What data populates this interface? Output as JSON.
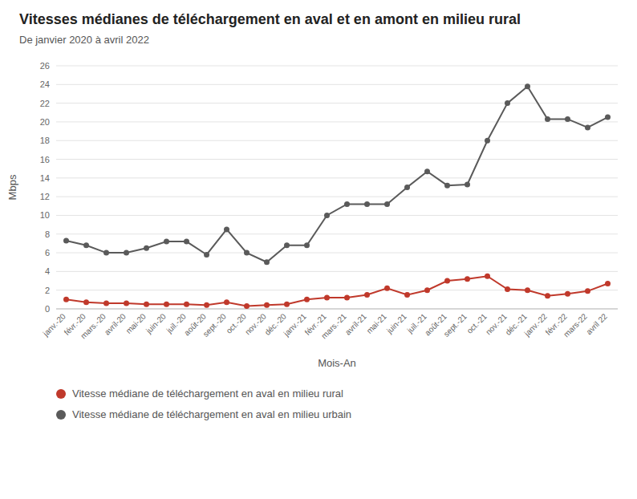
{
  "chart_data": {
    "type": "line",
    "title": "Vitesses médianes de téléchargement en aval et en amont en milieu rural",
    "subtitle": "De janvier 2020 à avril 2022",
    "x_label": "Mois-An",
    "y_label": "Mbps",
    "categories": [
      "janv.-20",
      "févr.-20",
      "mars.-20",
      "avril-20",
      "mai-20",
      "juin-20",
      "juil.-20",
      "août-20",
      "sept.-20",
      "oct.-20",
      "nov.-20",
      "déc.-20",
      "janv.-21",
      "févr.-21",
      "mars.-21",
      "avril-21",
      "mai-21",
      "juin-21",
      "juil.-21",
      "août-21",
      "sept.-21",
      "oct.-21",
      "nov.-21",
      "déc.-21",
      "janv.-22",
      "févr.-22",
      "mars-22",
      "avril 22"
    ],
    "series": [
      {
        "name": "Vitesse médiane de téléchargement en aval en milieu rural",
        "color": "#c0392b",
        "marker": "circle",
        "values": [
          1.0,
          0.7,
          0.6,
          0.6,
          0.5,
          0.5,
          0.5,
          0.4,
          0.7,
          0.3,
          0.4,
          0.5,
          1.0,
          1.2,
          1.2,
          1.5,
          2.2,
          1.5,
          2.0,
          3.0,
          3.2,
          3.5,
          2.1,
          2.0,
          1.4,
          1.6,
          1.9,
          2.7
        ]
      },
      {
        "name": "Vitesse médiane de téléchargement en aval en milieu urbain",
        "color": "#5a5a5a",
        "marker": "circle",
        "values": [
          7.3,
          6.8,
          6.0,
          6.0,
          6.5,
          7.2,
          7.2,
          5.8,
          8.5,
          6.0,
          5.0,
          6.8,
          6.8,
          10.0,
          11.2,
          11.2,
          11.2,
          13.0,
          14.7,
          13.2,
          13.3,
          18.0,
          22.0,
          23.8,
          20.3,
          20.3,
          19.4,
          20.5
        ]
      }
    ],
    "ylim": [
      0,
      26
    ],
    "yticks": [
      0,
      2,
      4,
      6,
      8,
      10,
      12,
      14,
      16,
      18,
      20,
      22,
      24,
      26
    ],
    "grid": true,
    "legend": "bottom"
  }
}
